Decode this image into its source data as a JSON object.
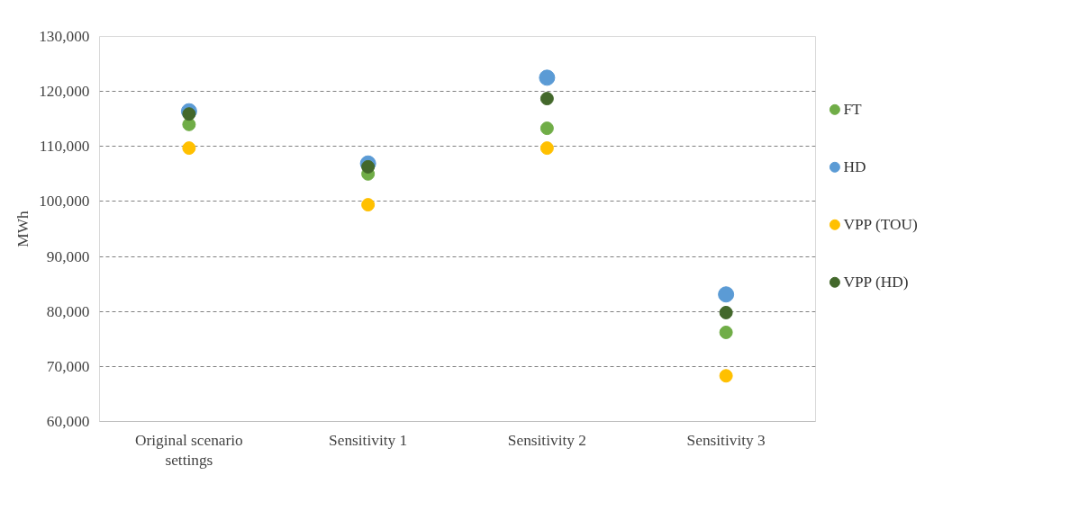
{
  "chart_data": {
    "type": "scatter",
    "ylabel": "MWh",
    "categories": [
      "Original scenario settings",
      "Sensitivity 1",
      "Sensitivity 2",
      "Sensitivity 3"
    ],
    "series": [
      {
        "name": "FT",
        "color": "#70ad47",
        "values": [
          114000,
          105000,
          113300,
          76200
        ]
      },
      {
        "name": "HD",
        "color": "#5b9bd5",
        "values": [
          116400,
          106900,
          122500,
          83100
        ]
      },
      {
        "name": "VPP (TOU)",
        "color": "#ffc000",
        "values": [
          109700,
          99400,
          109700,
          68300
        ]
      },
      {
        "name": "VPP (HD)",
        "color": "#43682b",
        "values": [
          115900,
          106300,
          118700,
          79800
        ]
      }
    ],
    "ylim": [
      60000,
      130000
    ],
    "yticks": [
      {
        "value": 60000,
        "label": "60,000"
      },
      {
        "value": 70000,
        "label": "70,000"
      },
      {
        "value": 80000,
        "label": "80,000"
      },
      {
        "value": 90000,
        "label": "90,000"
      },
      {
        "value": 100000,
        "label": "100,000"
      },
      {
        "value": 110000,
        "label": "110,000"
      },
      {
        "value": 120000,
        "label": "120,000"
      },
      {
        "value": 130000,
        "label": "130,000"
      }
    ],
    "grid": "y",
    "legend": "right",
    "marker": "circle"
  }
}
